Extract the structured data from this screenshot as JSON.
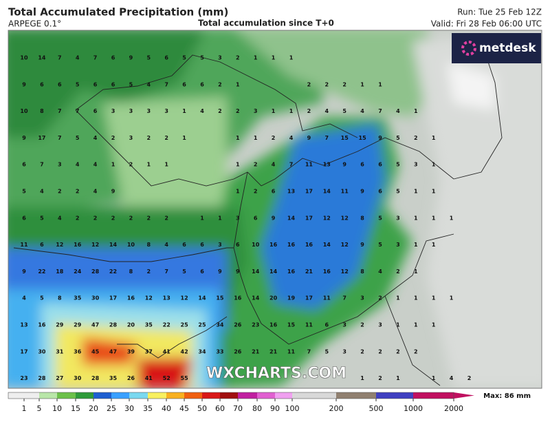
{
  "header": {
    "title": "Total Accumulated Precipitation (mm)",
    "model": "ARPEGE 0.1°",
    "subtitle": "Total accumulation since T+0",
    "run": "Run: Tue 25 Feb 12Z",
    "valid": "Valid: Fri 28 Feb 06:00 UTC"
  },
  "logo": "metdesk",
  "watermark": "WXCHARTS.COM",
  "grid": {
    "rows": [
      [
        10,
        14,
        7,
        4,
        7,
        6,
        9,
        5,
        6,
        5,
        5,
        3,
        2,
        1,
        1,
        1
      ],
      [
        9,
        6,
        6,
        5,
        6,
        6,
        5,
        4,
        7,
        6,
        6,
        2,
        1,
        null,
        null,
        null,
        2,
        2,
        2,
        1,
        1
      ],
      [
        10,
        8,
        7,
        7,
        6,
        3,
        3,
        3,
        3,
        1,
        4,
        2,
        2,
        3,
        1,
        1,
        2,
        4,
        5,
        4,
        7,
        4,
        1
      ],
      [
        9,
        17,
        7,
        5,
        4,
        2,
        3,
        2,
        2,
        1,
        null,
        null,
        1,
        1,
        2,
        4,
        9,
        7,
        15,
        15,
        9,
        5,
        2,
        1
      ],
      [
        6,
        7,
        3,
        4,
        4,
        1,
        2,
        1,
        1,
        null,
        null,
        null,
        1,
        2,
        4,
        7,
        11,
        13,
        9,
        6,
        6,
        5,
        3,
        1
      ],
      [
        5,
        4,
        2,
        2,
        4,
        9,
        null,
        null,
        null,
        null,
        null,
        null,
        1,
        2,
        6,
        13,
        17,
        14,
        11,
        9,
        6,
        5,
        1,
        1
      ],
      [
        6,
        5,
        4,
        2,
        2,
        2,
        2,
        2,
        2,
        null,
        1,
        1,
        3,
        6,
        9,
        14,
        17,
        12,
        12,
        8,
        5,
        3,
        1,
        1,
        1
      ],
      [
        11,
        6,
        12,
        16,
        12,
        14,
        10,
        8,
        4,
        6,
        6,
        3,
        6,
        10,
        16,
        16,
        16,
        14,
        12,
        9,
        5,
        3,
        1,
        1
      ],
      [
        9,
        22,
        18,
        24,
        28,
        22,
        8,
        2,
        7,
        5,
        6,
        9,
        9,
        14,
        14,
        16,
        21,
        16,
        12,
        8,
        4,
        2,
        1
      ],
      [
        4,
        5,
        8,
        35,
        30,
        17,
        16,
        12,
        13,
        12,
        14,
        15,
        16,
        14,
        20,
        19,
        17,
        11,
        7,
        3,
        2,
        1,
        1,
        1,
        1
      ],
      [
        13,
        16,
        29,
        29,
        47,
        28,
        20,
        35,
        22,
        25,
        25,
        34,
        26,
        23,
        16,
        15,
        11,
        6,
        3,
        2,
        3,
        1,
        1,
        1
      ],
      [
        17,
        30,
        31,
        36,
        45,
        47,
        39,
        37,
        41,
        42,
        34,
        33,
        26,
        21,
        21,
        11,
        7,
        5,
        3,
        2,
        2,
        2,
        2
      ],
      [
        23,
        28,
        27,
        30,
        28,
        35,
        26,
        41,
        52,
        55,
        null,
        null,
        null,
        null,
        null,
        null,
        null,
        null,
        null,
        1,
        2,
        1,
        null,
        1,
        4,
        2
      ]
    ]
  },
  "colorbar": {
    "ticks": [
      1,
      5,
      10,
      15,
      20,
      25,
      30,
      35,
      40,
      45,
      50,
      60,
      70,
      80,
      90,
      100,
      200,
      500,
      1000,
      2000
    ],
    "colors": [
      "#eeeeee",
      "#b8e6a8",
      "#6cc04a",
      "#2f9a3a",
      "#1e5fd0",
      "#3aa0ff",
      "#7ad8f0",
      "#f8f060",
      "#f8b020",
      "#f06010",
      "#d81818",
      "#a01010",
      "#c020a0",
      "#e060d0",
      "#f0a0f0",
      "#d8d8d8",
      "#908070",
      "#4040c0",
      "#c01060"
    ],
    "max": "Max: 86 mm"
  }
}
